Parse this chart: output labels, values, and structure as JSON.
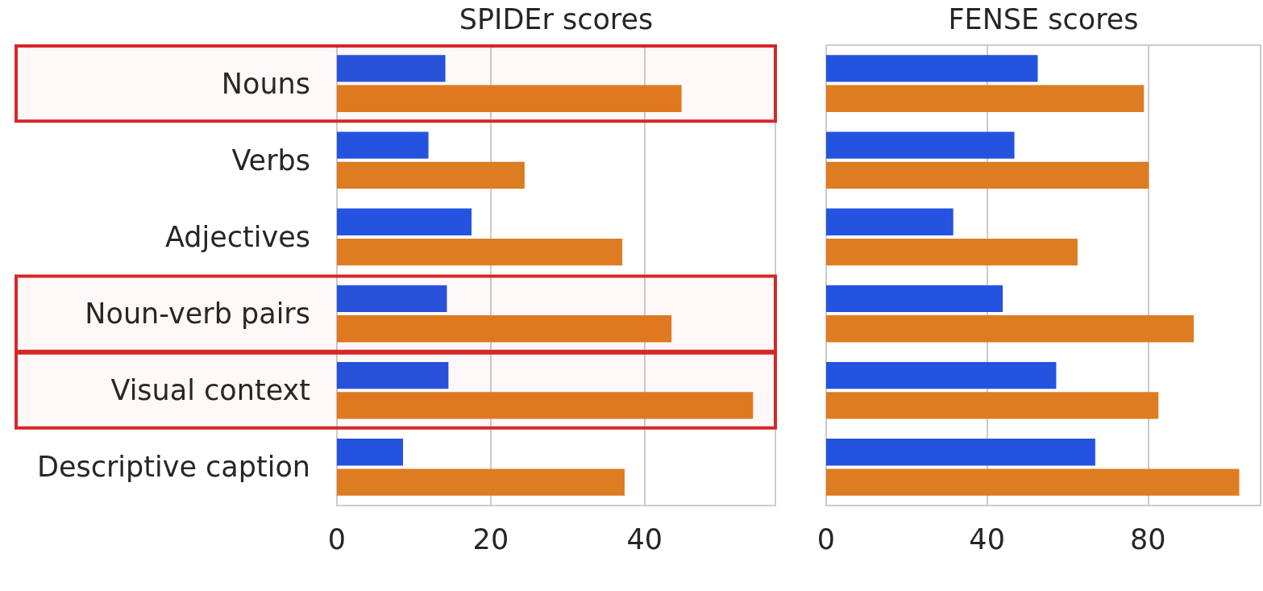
{
  "chart_data": [
    {
      "type": "bar",
      "orientation": "horizontal",
      "title": "SPIDEr scores",
      "categories": [
        "Nouns",
        "Verbs",
        "Adjectives",
        "Noun-verb pairs",
        "Visual context",
        "Descriptive caption"
      ],
      "series": [
        {
          "color": "#2353df",
          "values": [
            14.1,
            11.9,
            17.5,
            14.3,
            14.5,
            8.6
          ]
        },
        {
          "color": "#de7c21",
          "values": [
            44.8,
            24.4,
            37.1,
            43.5,
            54.1,
            37.4
          ]
        }
      ],
      "xlim": [
        0,
        57
      ],
      "xticks": [
        0,
        20,
        40
      ],
      "grid": "x",
      "bands": [
        {
          "axis": "y",
          "from": "Nouns",
          "to": "Nouns",
          "color": "#d62728"
        },
        {
          "axis": "y",
          "from": "Noun-verb pairs",
          "to": "Noun-verb pairs",
          "color": "#d62728"
        },
        {
          "axis": "y",
          "from": "Visual context",
          "to": "Visual context",
          "color": "#d62728"
        }
      ]
    },
    {
      "type": "bar",
      "orientation": "horizontal",
      "title": "FENSE scores",
      "categories": [
        null,
        null,
        null,
        null,
        null,
        null
      ],
      "series": [
        {
          "color": "#2353df",
          "values": [
            52.6,
            46.8,
            31.6,
            43.9,
            57.2,
            66.9
          ]
        },
        {
          "color": "#de7c21",
          "values": [
            79.0,
            80.2,
            62.5,
            91.4,
            82.6,
            102.7
          ]
        }
      ],
      "xlim": [
        0,
        108
      ],
      "xticks": [
        0,
        40,
        80
      ],
      "grid": "x",
      "tick_labels": "x"
    }
  ]
}
